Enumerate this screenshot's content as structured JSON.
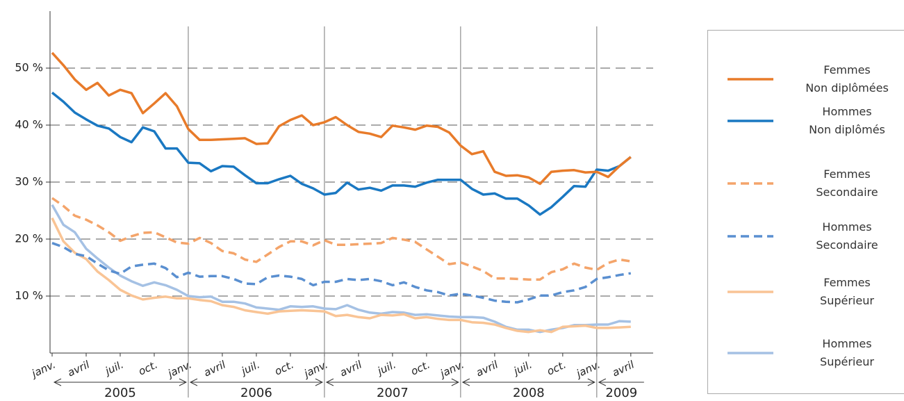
{
  "chart_data": {
    "type": "line",
    "categories": [
      "janv.",
      null,
      null,
      "avril",
      null,
      null,
      "juil.",
      null,
      null,
      "oct.",
      null,
      null,
      "janv.",
      null,
      null,
      "avril",
      null,
      null,
      "juil.",
      null,
      null,
      "oct.",
      null,
      null,
      "janv.",
      null,
      null,
      "avril",
      null,
      null,
      "juil.",
      null,
      null,
      "oct.",
      null,
      null,
      "janv.",
      null,
      null,
      "avril",
      null,
      null,
      "juil.",
      null,
      null,
      "oct.",
      null,
      null,
      "janv.",
      null,
      null,
      "avril"
    ],
    "years": [
      "2005",
      "2006",
      "2007",
      "2008",
      "2009"
    ],
    "ylim": [
      0,
      60
    ],
    "yticks": [
      {
        "value": 10,
        "label": "10 %"
      },
      {
        "value": 20,
        "label": "20 %"
      },
      {
        "value": 30,
        "label": "30 %"
      },
      {
        "value": 40,
        "label": "40 %"
      },
      {
        "value": 50,
        "label": "50 %"
      }
    ],
    "grid": true,
    "series": [
      {
        "name": "Femmes\nNon diplômées",
        "color": "#e87b2a",
        "dash": false,
        "values": [
          52.7,
          50.5,
          48,
          46.2,
          47.4,
          45.2,
          46.2,
          45.6,
          42.1,
          43.8,
          45.6,
          43.3,
          39.3,
          37.4,
          37.4,
          37.5,
          37.6,
          37.7,
          36.7,
          36.8,
          39.8,
          40.9,
          41.7,
          40,
          40.5,
          41.4,
          40,
          38.8,
          38.5,
          37.9,
          39.9,
          39.6,
          39.2,
          39.9,
          39.7,
          38.7,
          36.4,
          34.9,
          35.4,
          31.8,
          31.1,
          31.2,
          30.8,
          29.7,
          31.8,
          32,
          32.1,
          31.7,
          31.8,
          30.9,
          32.8,
          34.4
        ]
      },
      {
        "name": "Hommes\nNon diplômés",
        "color": "#1a78c2",
        "dash": false,
        "values": [
          45.7,
          44.1,
          42.2,
          41,
          39.9,
          39.4,
          37.9,
          37,
          39.6,
          38.9,
          35.9,
          35.9,
          33.4,
          33.3,
          31.9,
          32.8,
          32.7,
          31.2,
          29.8,
          29.8,
          30.5,
          31.1,
          29.7,
          28.9,
          27.8,
          28.1,
          29.9,
          28.7,
          29,
          28.5,
          29.4,
          29.4,
          29.2,
          29.9,
          30.4,
          30.4,
          30.4,
          28.8,
          27.8,
          28,
          27.1,
          27.1,
          25.9,
          24.3,
          25.6,
          27.4,
          29.3,
          29.2,
          32.2,
          32,
          32.8,
          34.4
        ]
      },
      {
        "name": "Femmes\nSecondaire",
        "color": "#f4a46a",
        "dash": true,
        "values": [
          27.2,
          25.8,
          24.1,
          23.4,
          22.4,
          21.2,
          19.7,
          20.5,
          21.1,
          21.2,
          20.3,
          19.4,
          19.2,
          20.2,
          19.3,
          17.9,
          17.5,
          16.4,
          16,
          17.3,
          18.6,
          19.6,
          19.6,
          18.9,
          19.8,
          19,
          19,
          19.1,
          19.2,
          19.3,
          20.2,
          19.9,
          19.5,
          18.2,
          16.9,
          15.6,
          15.9,
          15.2,
          14.4,
          13.1,
          13.1,
          13,
          12.9,
          12.9,
          14.2,
          14.7,
          15.7,
          15,
          14.6,
          15.8,
          16.4,
          16.1
        ]
      },
      {
        "name": "Hommes\nSecondaire",
        "color": "#5a8fd0",
        "dash": true,
        "values": [
          19.3,
          18.6,
          17.4,
          17,
          15.7,
          14.5,
          13.9,
          15.2,
          15.5,
          15.7,
          14.9,
          13.3,
          14.1,
          13.4,
          13.5,
          13.5,
          13,
          12.2,
          12.1,
          13.3,
          13.6,
          13.4,
          13,
          11.9,
          12.5,
          12.5,
          13,
          12.8,
          13,
          12.6,
          11.9,
          12.4,
          11.6,
          11,
          10.7,
          10.1,
          10.4,
          10.1,
          9.7,
          9.2,
          9,
          8.9,
          9.4,
          10.1,
          10.1,
          10.7,
          11,
          11.6,
          13,
          13.3,
          13.7,
          14
        ]
      },
      {
        "name": "Femmes\nSupérieur",
        "color": "#f9c495",
        "dash": false,
        "values": [
          23.7,
          19.6,
          17.6,
          16.5,
          14.3,
          12.8,
          11.1,
          10.1,
          9.4,
          9.7,
          9.9,
          9.6,
          9.6,
          9.3,
          9.1,
          8.4,
          8.1,
          7.5,
          7.2,
          6.9,
          7.3,
          7.4,
          7.5,
          7.4,
          7.3,
          6.5,
          6.7,
          6.3,
          6.1,
          6.7,
          6.6,
          6.8,
          6.1,
          6.3,
          6,
          5.8,
          5.8,
          5.4,
          5.3,
          5,
          4.4,
          3.9,
          3.7,
          4,
          3.7,
          4.6,
          4.7,
          4.8,
          4.4,
          4.4,
          4.5,
          4.6
        ]
      },
      {
        "name": "Hommes\nSupérieur",
        "color": "#a5c1e4",
        "dash": false,
        "values": [
          26,
          22.5,
          21.2,
          18.3,
          16.6,
          15,
          13.6,
          12.6,
          11.8,
          12.4,
          11.9,
          11.1,
          10,
          9.8,
          9.9,
          9,
          9,
          8.7,
          8,
          7.8,
          7.6,
          8.2,
          8.1,
          8.2,
          7.8,
          7.7,
          8.4,
          7.6,
          7.1,
          6.9,
          7.2,
          7.1,
          6.7,
          6.8,
          6.6,
          6.4,
          6.3,
          6.3,
          6.2,
          5.5,
          4.6,
          4.1,
          4.1,
          3.7,
          4.1,
          4.4,
          4.9,
          4.9,
          5,
          5,
          5.6,
          5.5
        ]
      }
    ]
  }
}
